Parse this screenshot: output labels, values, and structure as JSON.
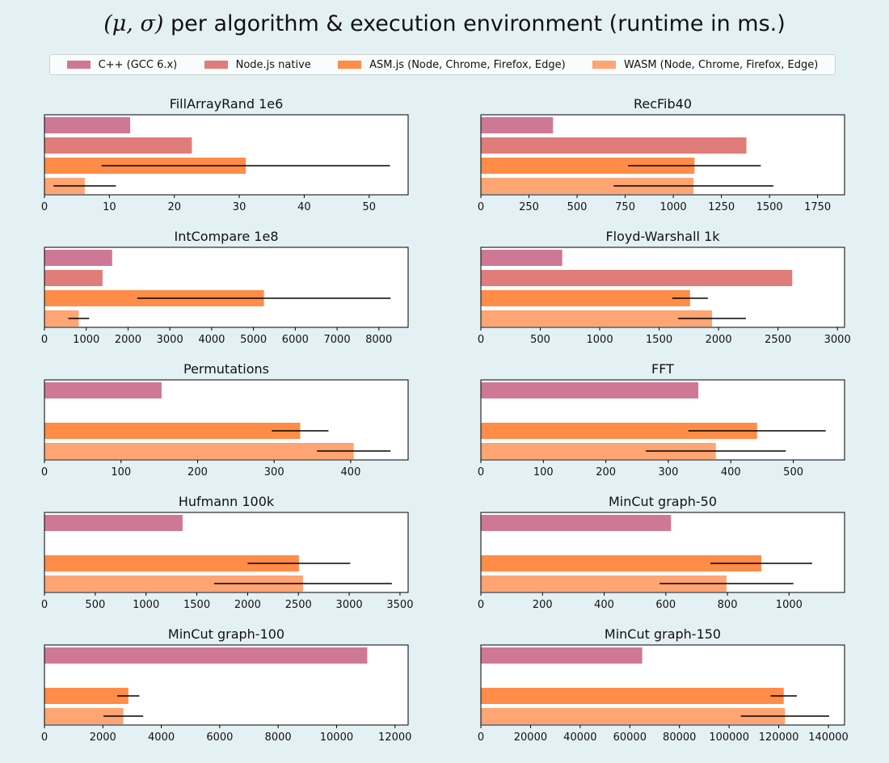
{
  "title": "per algorithm & execution environment (runtime in ms.)",
  "title_math": "(μ, σ)",
  "legend": [
    {
      "label": "C++ (GCC 6.x)",
      "color": "#cf7896"
    },
    {
      "label": "Node.js native",
      "color": "#e07c7a"
    },
    {
      "label": "ASM.js (Node, Chrome, Firefox, Edge)",
      "color": "#ff8c47"
    },
    {
      "label": "WASM (Node, Chrome, Firefox, Edge)",
      "color": "#ffa472"
    }
  ],
  "chart_data": [
    {
      "type": "bar",
      "orientation": "horizontal",
      "title": "FillArrayRand 1e6",
      "xlim": [
        0,
        56
      ],
      "xticks": [
        0,
        10,
        20,
        30,
        40,
        50
      ],
      "series": [
        {
          "name": "C++ (GCC 6.x)",
          "value": 13.2
        },
        {
          "name": "Node.js native",
          "value": 22.7
        },
        {
          "name": "ASM.js (Node, Chrome, Firefox, Edge)",
          "value": 31.0,
          "std": 22.2
        },
        {
          "name": "WASM (Node, Chrome, Firefox, Edge)",
          "value": 6.2,
          "std": 4.8
        }
      ]
    },
    {
      "type": "bar",
      "orientation": "horizontal",
      "title": "RecFib40",
      "xlim": [
        0,
        1890
      ],
      "xticks": [
        0,
        250,
        500,
        750,
        1000,
        1250,
        1500,
        1750
      ],
      "series": [
        {
          "name": "C++ (GCC 6.x)",
          "value": 375
        },
        {
          "name": "Node.js native",
          "value": 1380
        },
        {
          "name": "ASM.js (Node, Chrome, Firefox, Edge)",
          "value": 1110,
          "std": 345
        },
        {
          "name": "WASM (Node, Chrome, Firefox, Edge)",
          "value": 1105,
          "std": 415
        }
      ]
    },
    {
      "type": "bar",
      "orientation": "horizontal",
      "title": "IntCompare 1e8",
      "xlim": [
        0,
        8700
      ],
      "xticks": [
        0,
        1000,
        2000,
        3000,
        4000,
        5000,
        6000,
        7000,
        8000
      ],
      "series": [
        {
          "name": "C++ (GCC 6.x)",
          "value": 1620
        },
        {
          "name": "Node.js native",
          "value": 1390
        },
        {
          "name": "ASM.js (Node, Chrome, Firefox, Edge)",
          "value": 5250,
          "std": 3030
        },
        {
          "name": "WASM (Node, Chrome, Firefox, Edge)",
          "value": 820,
          "std": 250
        }
      ]
    },
    {
      "type": "bar",
      "orientation": "horizontal",
      "title": "Floyd-Warshall 1k",
      "xlim": [
        0,
        3060
      ],
      "xticks": [
        0,
        500,
        1000,
        1500,
        2000,
        2500,
        3000
      ],
      "series": [
        {
          "name": "C++ (GCC 6.x)",
          "value": 685
        },
        {
          "name": "Node.js native",
          "value": 2620
        },
        {
          "name": "ASM.js (Node, Chrome, Firefox, Edge)",
          "value": 1760,
          "std": 150
        },
        {
          "name": "WASM (Node, Chrome, Firefox, Edge)",
          "value": 1945,
          "std": 285
        }
      ]
    },
    {
      "type": "bar",
      "orientation": "horizontal",
      "title": "Permutations",
      "xlim": [
        0,
        475
      ],
      "xticks": [
        0,
        100,
        200,
        300,
        400
      ],
      "series": [
        {
          "name": "C++ (GCC 6.x)",
          "value": 153
        },
        {
          "name": "Node.js native",
          "value": null
        },
        {
          "name": "ASM.js (Node, Chrome, Firefox, Edge)",
          "value": 334,
          "std": 37
        },
        {
          "name": "WASM (Node, Chrome, Firefox, Edge)",
          "value": 404,
          "std": 48
        }
      ]
    },
    {
      "type": "bar",
      "orientation": "horizontal",
      "title": "FFT",
      "xlim": [
        0,
        582
      ],
      "xticks": [
        0,
        100,
        200,
        300,
        400,
        500
      ],
      "series": [
        {
          "name": "C++ (GCC 6.x)",
          "value": 348
        },
        {
          "name": "Node.js native",
          "value": null
        },
        {
          "name": "ASM.js (Node, Chrome, Firefox, Edge)",
          "value": 442,
          "std": 110
        },
        {
          "name": "WASM (Node, Chrome, Firefox, Edge)",
          "value": 376,
          "std": 112
        }
      ]
    },
    {
      "type": "bar",
      "orientation": "horizontal",
      "title": "Hufmann 100k",
      "xlim": [
        0,
        3580
      ],
      "xticks": [
        0,
        500,
        1000,
        1500,
        2000,
        2500,
        3000,
        3500
      ],
      "series": [
        {
          "name": "C++ (GCC 6.x)",
          "value": 1360
        },
        {
          "name": "Node.js native",
          "value": null
        },
        {
          "name": "ASM.js (Node, Chrome, Firefox, Edge)",
          "value": 2505,
          "std": 505
        },
        {
          "name": "WASM (Node, Chrome, Firefox, Edge)",
          "value": 2545,
          "std": 875
        }
      ]
    },
    {
      "type": "bar",
      "orientation": "horizontal",
      "title": "MinCut graph-50",
      "xlim": [
        0,
        1180
      ],
      "xticks": [
        0,
        200,
        400,
        600,
        800,
        1000
      ],
      "series": [
        {
          "name": "C++ (GCC 6.x)",
          "value": 617
        },
        {
          "name": "Node.js native",
          "value": null
        },
        {
          "name": "ASM.js (Node, Chrome, Firefox, Edge)",
          "value": 910,
          "std": 165
        },
        {
          "name": "WASM (Node, Chrome, Firefox, Edge)",
          "value": 797,
          "std": 217
        }
      ]
    },
    {
      "type": "bar",
      "orientation": "horizontal",
      "title": "MinCut graph-100",
      "xlim": [
        0,
        12450
      ],
      "xticks": [
        0,
        2000,
        4000,
        6000,
        8000,
        10000,
        12000
      ],
      "series": [
        {
          "name": "C++ (GCC 6.x)",
          "value": 11050
        },
        {
          "name": "Node.js native",
          "value": null
        },
        {
          "name": "ASM.js (Node, Chrome, Firefox, Edge)",
          "value": 2870,
          "std": 380
        },
        {
          "name": "WASM (Node, Chrome, Firefox, Edge)",
          "value": 2700,
          "std": 680
        }
      ]
    },
    {
      "type": "bar",
      "orientation": "horizontal",
      "title": "MinCut graph-150",
      "xlim": [
        0,
        146500
      ],
      "xticks": [
        0,
        20000,
        40000,
        60000,
        80000,
        100000,
        120000,
        140000
      ],
      "series": [
        {
          "name": "C++ (GCC 6.x)",
          "value": 65000
        },
        {
          "name": "Node.js native",
          "value": null
        },
        {
          "name": "ASM.js (Node, Chrome, Firefox, Edge)",
          "value": 122000,
          "std": 5300
        },
        {
          "name": "WASM (Node, Chrome, Firefox, Edge)",
          "value": 122500,
          "std": 17800
        }
      ]
    }
  ]
}
